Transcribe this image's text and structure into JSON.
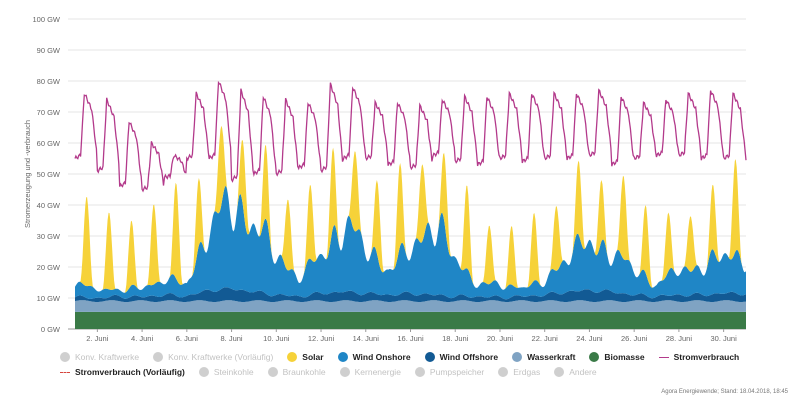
{
  "chart_data": {
    "type": "area",
    "ylabel": "Stromerzeugung und -verbrauch",
    "ylim": [
      0,
      100
    ],
    "y_ticks": [
      "0 GW",
      "10 GW",
      "20 GW",
      "30 GW",
      "40 GW",
      "50 GW",
      "60 GW",
      "70 GW",
      "80 GW",
      "90 GW",
      "100 GW"
    ],
    "x_range_days": [
      1,
      31
    ],
    "x_ticks": [
      {
        "day": 2,
        "label": "2. Juni"
      },
      {
        "day": 4,
        "label": "4. Juni"
      },
      {
        "day": 6,
        "label": "6. Juni"
      },
      {
        "day": 8,
        "label": "8. Juni"
      },
      {
        "day": 10,
        "label": "10. Juni"
      },
      {
        "day": 12,
        "label": "12. Juni"
      },
      {
        "day": 14,
        "label": "14. Juni"
      },
      {
        "day": 16,
        "label": "16. Juni"
      },
      {
        "day": 18,
        "label": "18. Juni"
      },
      {
        "day": 20,
        "label": "20. Juni"
      },
      {
        "day": 22,
        "label": "22. Juni"
      },
      {
        "day": 24,
        "label": "24. Juni"
      },
      {
        "day": 26,
        "label": "26. Juni"
      },
      {
        "day": 28,
        "label": "28. Juni"
      },
      {
        "day": 30,
        "label": "30. Juni"
      }
    ],
    "grid": true,
    "series": [
      {
        "name": "Biomasse",
        "color": "#3a7a47",
        "constant": 5.5
      },
      {
        "name": "Wasserkraft",
        "color": "#7fa3c3",
        "constant": 3.5
      },
      {
        "name": "Wind Offshore",
        "color": "#125a94",
        "daily_avg": [
          1.2,
          1.0,
          1.5,
          1.3,
          2.0,
          1.6,
          3.5,
          4.0,
          3.0,
          2.0,
          1.5,
          2.5,
          3.0,
          2.5,
          2.0,
          2.5,
          2.0,
          1.5,
          1.5,
          1.2,
          1.5,
          2.0,
          3.0,
          3.5,
          3.0,
          2.0,
          1.5,
          2.0,
          2.0,
          2.5
        ]
      },
      {
        "name": "Wind Onshore",
        "color": "#1f86c6",
        "daily_avg": [
          4,
          3,
          2,
          3,
          5,
          4,
          20,
          28,
          22,
          13,
          6,
          12,
          22,
          15,
          8,
          14,
          24,
          12,
          4,
          4,
          3,
          4,
          12,
          15,
          13,
          8,
          4,
          8,
          9,
          12
        ]
      },
      {
        "name": "Solar",
        "color": "#f6d239",
        "daily_peak": [
          29,
          25,
          21,
          26,
          31,
          22,
          26,
          21,
          24,
          23,
          24,
          26,
          26,
          24,
          27,
          25,
          22,
          27,
          19,
          19,
          22,
          21,
          24,
          20,
          27,
          22,
          19,
          18,
          21,
          30
        ]
      },
      {
        "name": "Stromverbrauch",
        "color": "#b33a8b",
        "kind": "line",
        "daily_peak": [
          76,
          74,
          67,
          60,
          56,
          76,
          80,
          77,
          75,
          74,
          73,
          79,
          78,
          73,
          73,
          72,
          74,
          75,
          75,
          76,
          76,
          76,
          76,
          77,
          75,
          73,
          74,
          76,
          77,
          76
        ],
        "daily_min": [
          55,
          51,
          46,
          45,
          49,
          55,
          55,
          48,
          50,
          50,
          52,
          51,
          55,
          55,
          53,
          52,
          56,
          54,
          53,
          55,
          54,
          55,
          55,
          56,
          53,
          55,
          56,
          56,
          55,
          55
        ]
      }
    ]
  },
  "legend": {
    "row1": [
      {
        "label": "Konv. Kraftwerke",
        "color": "#cfcfcf",
        "kind": "dot",
        "active": false
      },
      {
        "label": "Konv. Kraftwerke (Vorläufig)",
        "color": "#cfcfcf",
        "kind": "dot",
        "active": false
      },
      {
        "label": "Solar",
        "color": "#f6d239",
        "kind": "dot",
        "active": true
      },
      {
        "label": "Wind Onshore",
        "color": "#1f86c6",
        "kind": "dot",
        "active": true
      },
      {
        "label": "Wind Offshore",
        "color": "#125a94",
        "kind": "dot",
        "active": true
      },
      {
        "label": "Wasserkraft",
        "color": "#7fa3c3",
        "kind": "dot",
        "active": true
      },
      {
        "label": "Biomasse",
        "color": "#3a7a47",
        "kind": "dot",
        "active": true
      },
      {
        "label": "Stromverbrauch",
        "color": "#b33a8b",
        "kind": "line",
        "active": true
      }
    ],
    "row2": [
      {
        "label": "Stromverbrauch (Vorläufig)",
        "color": "#d6453d",
        "kind": "dash",
        "active": true
      },
      {
        "label": "Steinkohle",
        "color": "#cfcfcf",
        "kind": "dot",
        "active": false
      },
      {
        "label": "Braunkohle",
        "color": "#cfcfcf",
        "kind": "dot",
        "active": false
      },
      {
        "label": "Kernenergie",
        "color": "#cfcfcf",
        "kind": "dot",
        "active": false
      },
      {
        "label": "Pumpspeicher",
        "color": "#cfcfcf",
        "kind": "dot",
        "active": false
      },
      {
        "label": "Erdgas",
        "color": "#cfcfcf",
        "kind": "dot",
        "active": false
      },
      {
        "label": "Andere",
        "color": "#cfcfcf",
        "kind": "dot",
        "active": false
      }
    ]
  },
  "credit": "Agora Energiewende; Stand: 18.04.2018, 18:45"
}
